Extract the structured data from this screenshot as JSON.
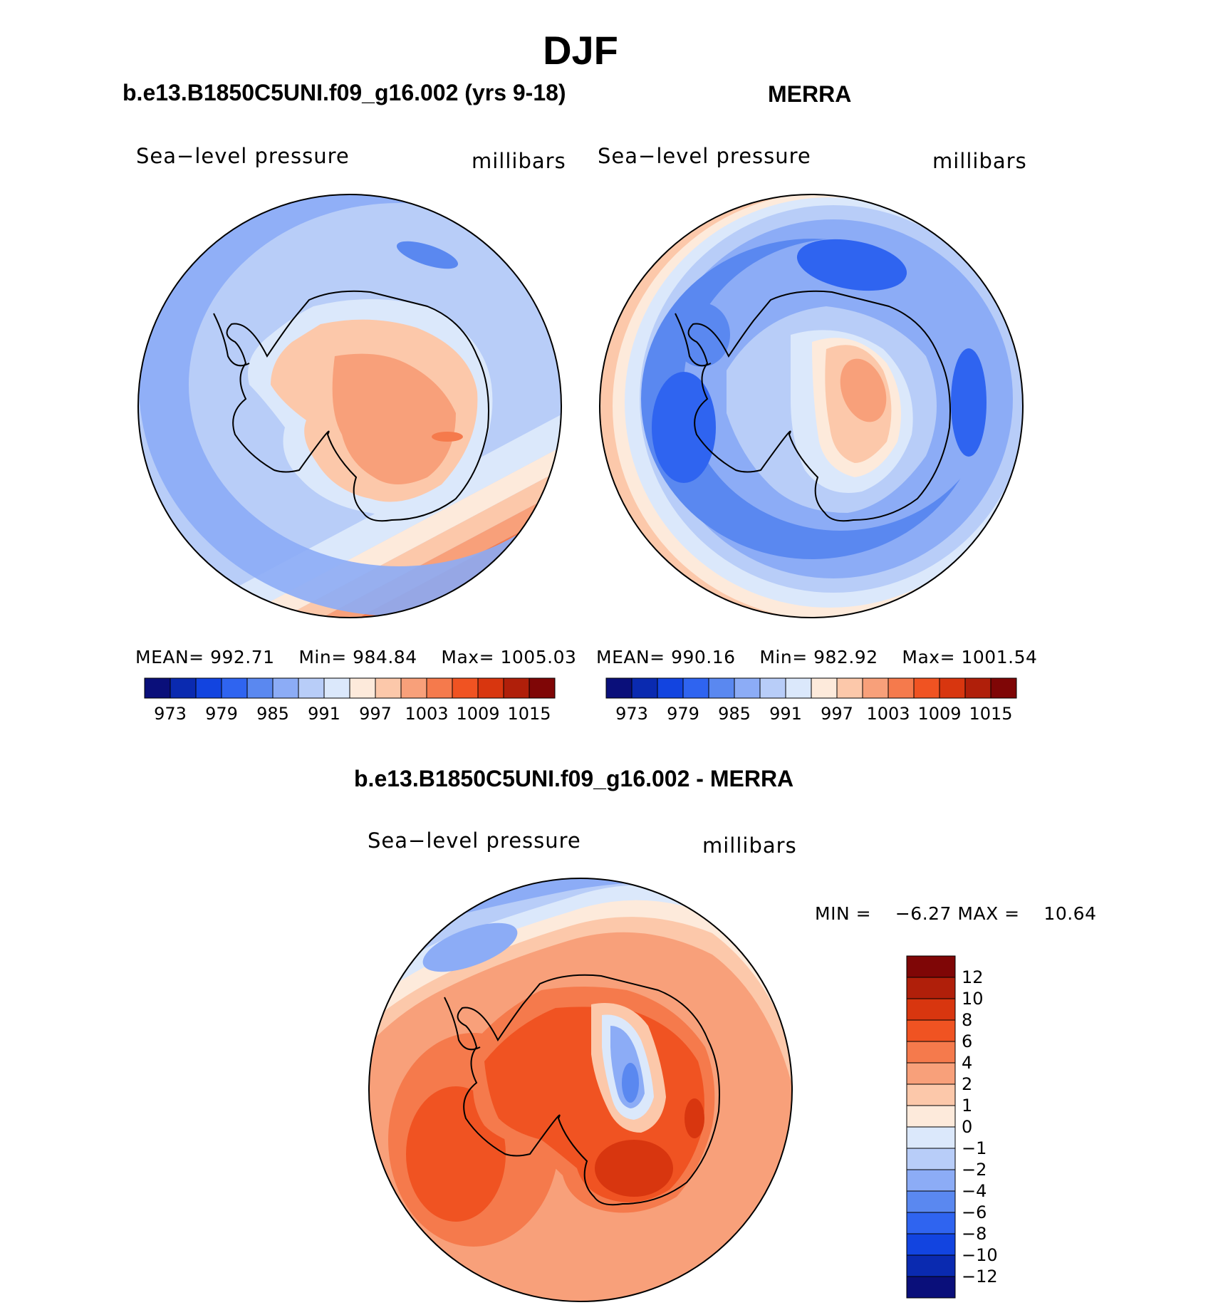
{
  "title": "DJF",
  "panels": [
    {
      "title": "b.e13.B1850C5UNI.f09_g16.002 (yrs 9-18)",
      "variable": "Sea−level pressure",
      "units": "millibars",
      "stats": {
        "mean_label": "MEAN=",
        "mean": "992.71",
        "min_label": "Min=",
        "min": "984.84",
        "max_label": "Max=",
        "max": "1005.03"
      },
      "colorbar_ticks": [
        "973",
        "979",
        "985",
        "991",
        "997",
        "1003",
        "1009",
        "1015"
      ]
    },
    {
      "title": "MERRA",
      "variable": "Sea−level pressure",
      "units": "millibars",
      "stats": {
        "mean_label": "MEAN=",
        "mean": "990.16",
        "min_label": "Min=",
        "min": "982.92",
        "max_label": "Max=",
        "max": "1001.54"
      },
      "colorbar_ticks": [
        "973",
        "979",
        "985",
        "991",
        "997",
        "1003",
        "1009",
        "1015"
      ]
    },
    {
      "title": "b.e13.B1850C5UNI.f09_g16.002 - MERRA",
      "variable": "Sea−level pressure",
      "units": "millibars",
      "stats": {
        "min_label": "MIN =",
        "min": "−6.27",
        "max_label": "MAX =",
        "max": "10.64"
      },
      "colorbar_ticks": [
        "12",
        "10",
        "8",
        "6",
        "4",
        "2",
        "1",
        "0",
        "−1",
        "−2",
        "−4",
        "−6",
        "−8",
        "−10",
        "−12"
      ]
    }
  ],
  "colors": {
    "pressure_scale": [
      "#0a0f7a",
      "#0a2ab0",
      "#1244e0",
      "#2f64f0",
      "#5a88f0",
      "#8cacf6",
      "#b8cdf8",
      "#dbe8fb",
      "#fdeadb",
      "#fcc8aa",
      "#f8a07a",
      "#f57a4c",
      "#f05322",
      "#d8360f",
      "#b01f0a",
      "#7f0606"
    ],
    "difference_scale": [
      "#7f0606",
      "#b01f0a",
      "#d8360f",
      "#f05322",
      "#f57a4c",
      "#f8a07a",
      "#fcc8aa",
      "#fdeadb",
      "#dbe8fb",
      "#b8cdf8",
      "#8cacf6",
      "#5a88f0",
      "#2f64f0",
      "#1244e0",
      "#0a2ab0",
      "#0a0f7a"
    ]
  }
}
